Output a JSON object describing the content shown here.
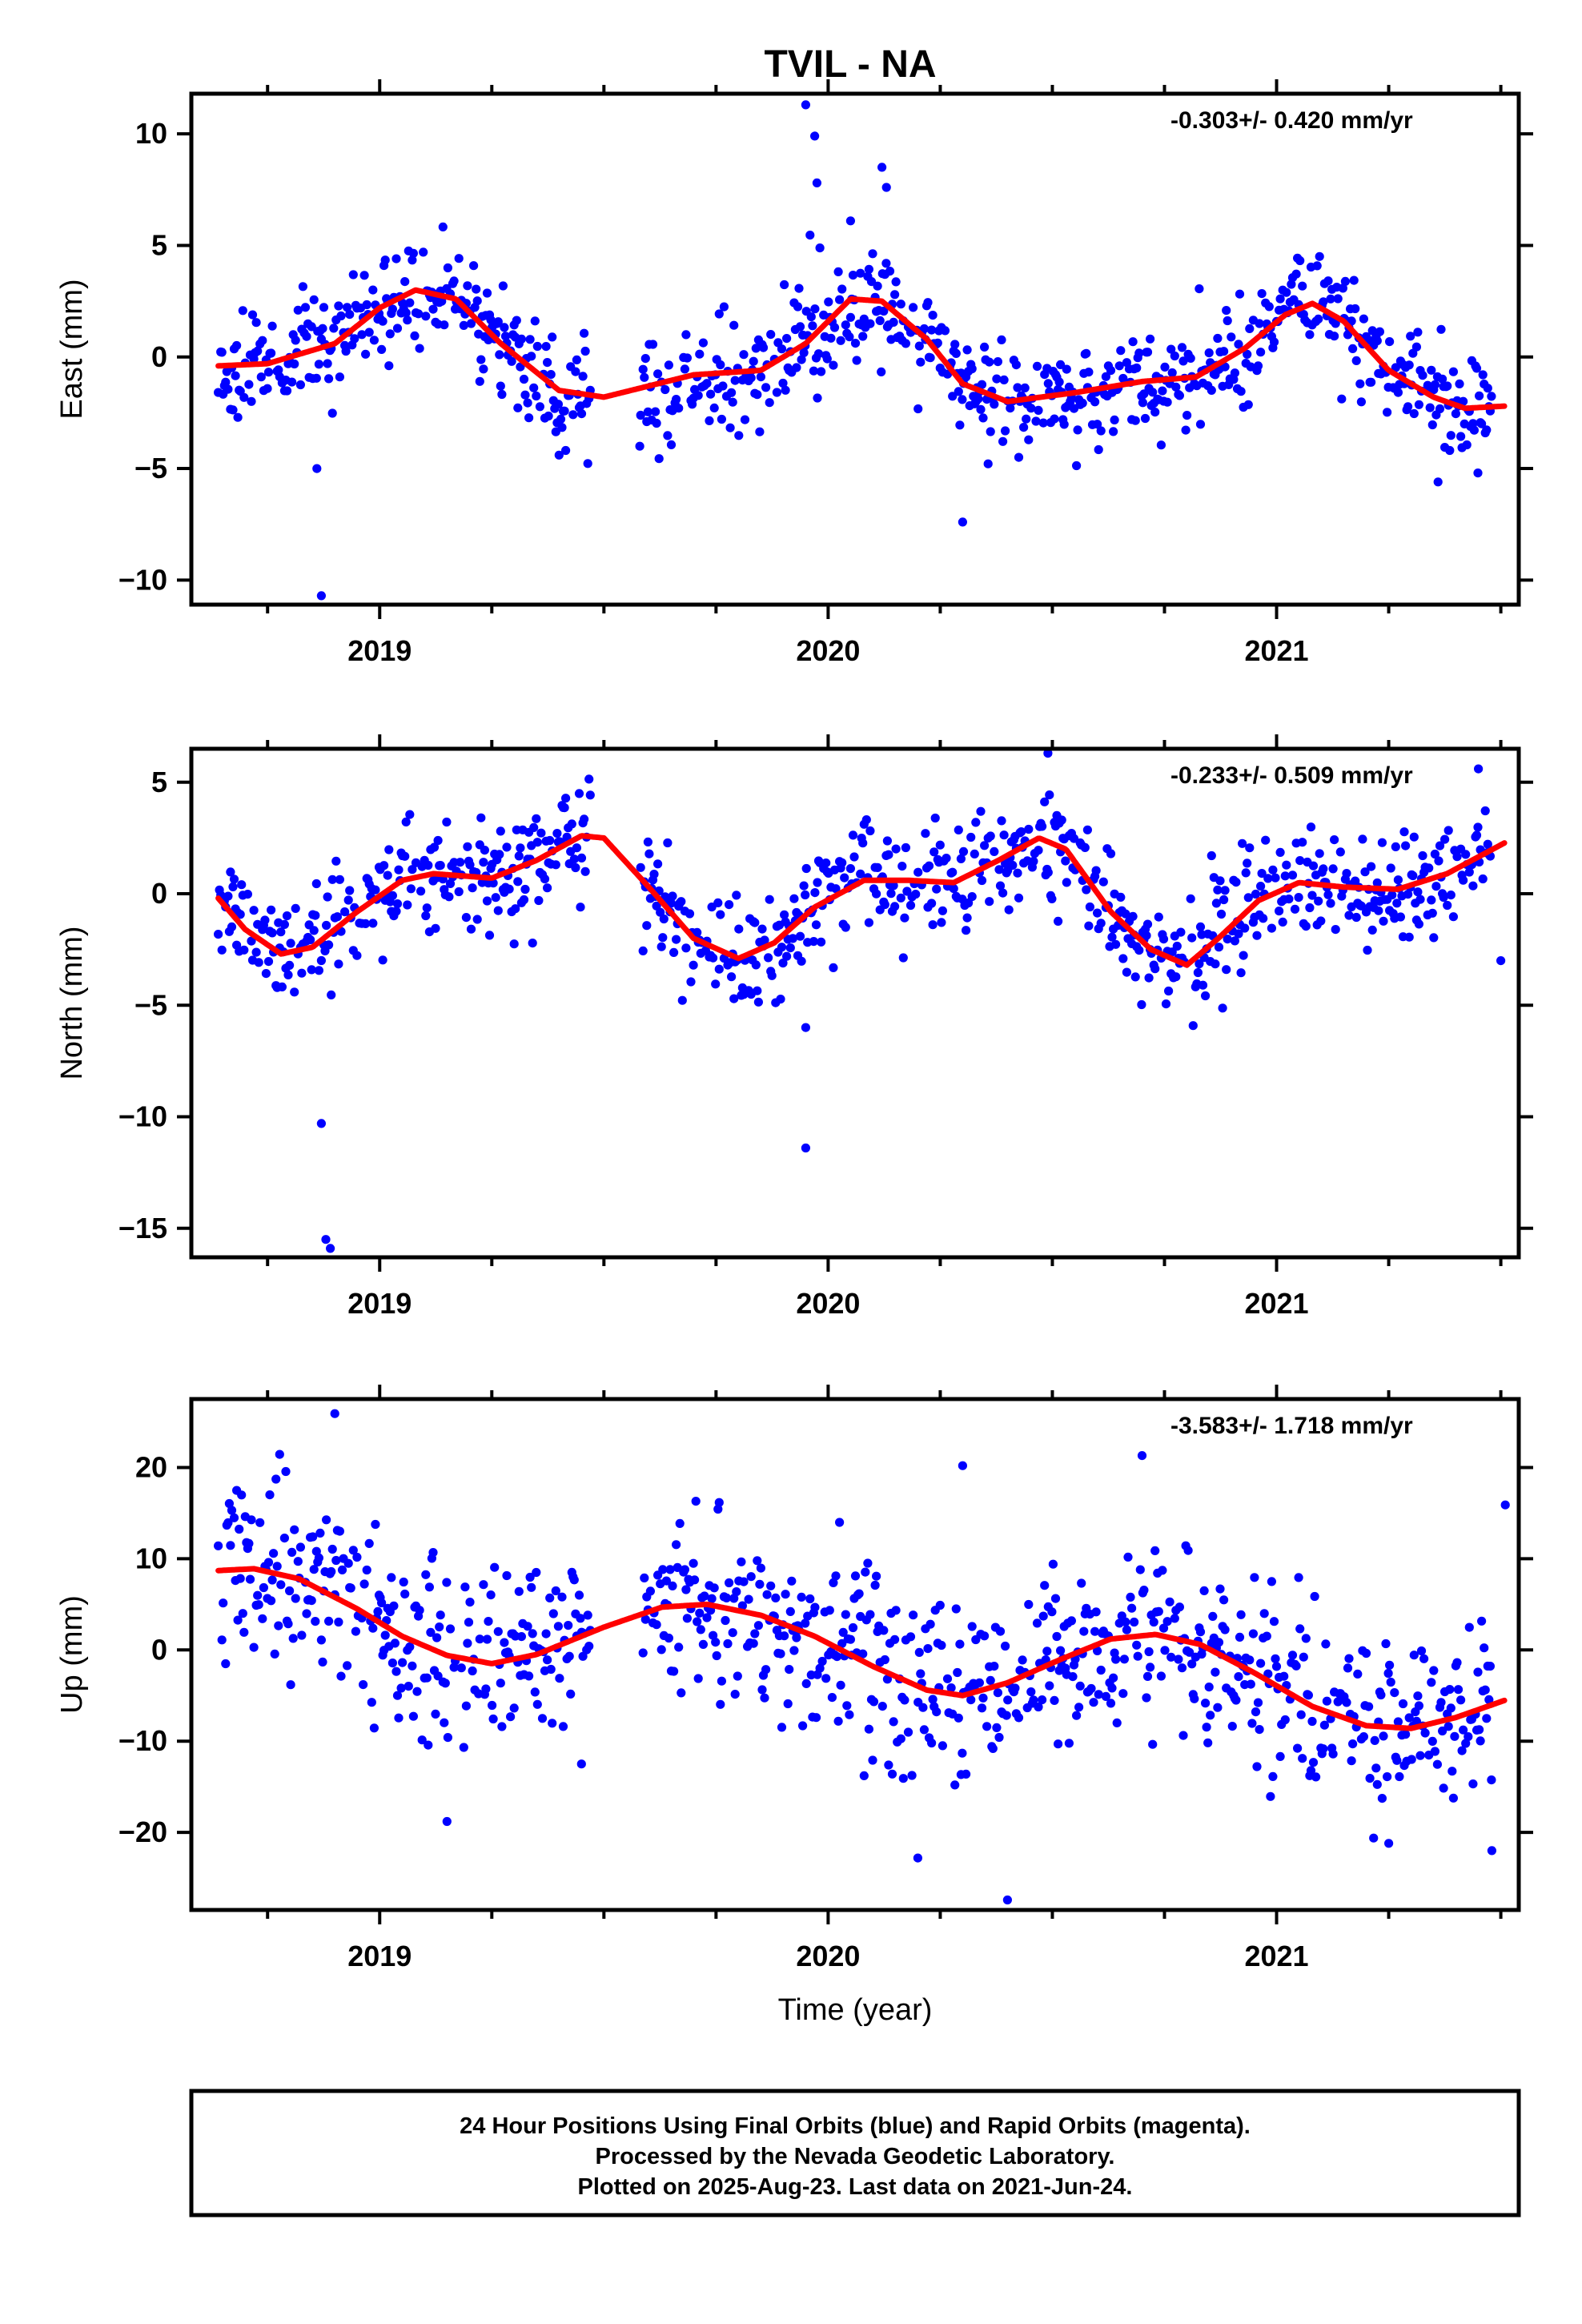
{
  "title": "TVIL - NA",
  "colors": {
    "final_orbits": "#0000ff",
    "fit": "#ff0000",
    "frame": "#000000"
  },
  "footer": {
    "line1": "24 Hour Positions Using Final Orbits (blue) and Rapid Orbits (magenta).",
    "line2": "Processed by the Nevada Geodetic Laboratory.",
    "line3": "Plotted on 2025-Aug-23. Last data on 2021-Jun-24."
  },
  "chart_data": [
    {
      "type": "scatter",
      "ylabel": "East (mm)",
      "xlabel": "",
      "rate": "-0.303+/- 0.420 mm/yr",
      "xlim": [
        2018.58,
        2021.54
      ],
      "ylim": [
        -11.1,
        11.8
      ],
      "yticks": [
        10,
        5,
        0,
        -5,
        -10
      ],
      "xticks": [
        2019,
        2020,
        2021
      ],
      "seed": 11,
      "noise": 1.25,
      "fit_curve": [
        [
          2018.64,
          -0.4
        ],
        [
          2018.75,
          -0.3
        ],
        [
          2018.9,
          0.6
        ],
        [
          2019.0,
          2.2
        ],
        [
          2019.08,
          3.0
        ],
        [
          2019.17,
          2.6
        ],
        [
          2019.27,
          0.6
        ],
        [
          2019.4,
          -1.5
        ],
        [
          2019.5,
          -1.8
        ],
        [
          2019.7,
          -0.8
        ],
        [
          2019.85,
          -0.6
        ],
        [
          2019.95,
          0.6
        ],
        [
          2020.05,
          2.6
        ],
        [
          2020.12,
          2.5
        ],
        [
          2020.22,
          0.8
        ],
        [
          2020.3,
          -1.2
        ],
        [
          2020.4,
          -2.0
        ],
        [
          2020.55,
          -1.6
        ],
        [
          2020.7,
          -1.1
        ],
        [
          2020.82,
          -0.9
        ],
        [
          2020.93,
          0.4
        ],
        [
          2021.02,
          1.9
        ],
        [
          2021.08,
          2.4
        ],
        [
          2021.15,
          1.6
        ],
        [
          2021.25,
          -0.6
        ],
        [
          2021.35,
          -1.8
        ],
        [
          2021.42,
          -2.3
        ],
        [
          2021.51,
          -2.2
        ]
      ],
      "outliers": [
        [
          2018.86,
          -5.0
        ],
        [
          2018.87,
          -10.7
        ],
        [
          2019.95,
          11.3
        ],
        [
          2019.97,
          9.9
        ],
        [
          2019.975,
          7.8
        ],
        [
          2020.05,
          6.1
        ],
        [
          2020.12,
          8.5
        ],
        [
          2020.13,
          7.6
        ],
        [
          2020.3,
          -7.4
        ],
        [
          2019.4,
          -4.4
        ],
        [
          2019.58,
          -4.0
        ],
        [
          2021.36,
          -5.6
        ]
      ],
      "gaps": [
        [
          2019.47,
          2019.58
        ]
      ]
    },
    {
      "type": "scatter",
      "ylabel": "North (mm)",
      "xlabel": "",
      "rate": "-0.233+/- 0.509 mm/yr",
      "xlim": [
        2018.58,
        2021.54
      ],
      "ylim": [
        -16.3,
        6.5
      ],
      "yticks": [
        5,
        0,
        -5,
        -10,
        -15
      ],
      "xticks": [
        2019,
        2020,
        2021
      ],
      "seed": 23,
      "noise": 1.25,
      "fit_curve": [
        [
          2018.64,
          -0.2
        ],
        [
          2018.7,
          -1.6
        ],
        [
          2018.78,
          -2.7
        ],
        [
          2018.85,
          -2.4
        ],
        [
          2018.95,
          -0.8
        ],
        [
          2019.05,
          0.6
        ],
        [
          2019.12,
          0.9
        ],
        [
          2019.25,
          0.7
        ],
        [
          2019.35,
          1.5
        ],
        [
          2019.45,
          2.6
        ],
        [
          2019.5,
          2.5
        ],
        [
          2019.6,
          0.3
        ],
        [
          2019.7,
          -2.0
        ],
        [
          2019.8,
          -2.9
        ],
        [
          2019.88,
          -2.2
        ],
        [
          2019.97,
          -0.6
        ],
        [
          2020.08,
          0.6
        ],
        [
          2020.18,
          0.6
        ],
        [
          2020.28,
          0.5
        ],
        [
          2020.38,
          1.5
        ],
        [
          2020.47,
          2.5
        ],
        [
          2020.53,
          2.0
        ],
        [
          2020.63,
          -0.8
        ],
        [
          2020.72,
          -2.5
        ],
        [
          2020.8,
          -3.2
        ],
        [
          2020.87,
          -2.0
        ],
        [
          2020.96,
          -0.3
        ],
        [
          2021.05,
          0.5
        ],
        [
          2021.15,
          0.3
        ],
        [
          2021.27,
          0.2
        ],
        [
          2021.38,
          0.9
        ],
        [
          2021.51,
          2.3
        ]
      ],
      "outliers": [
        [
          2018.87,
          -10.3
        ],
        [
          2018.88,
          -15.5
        ],
        [
          2018.89,
          -15.9
        ],
        [
          2019.95,
          -11.4
        ],
        [
          2019.95,
          -6.0
        ],
        [
          2020.49,
          6.3
        ],
        [
          2021.45,
          5.6
        ],
        [
          2021.5,
          -3.0
        ]
      ],
      "gaps": [
        [
          2019.47,
          2019.58
        ]
      ]
    },
    {
      "type": "scatter",
      "ylabel": "Up (mm)",
      "xlabel": "Time (year)",
      "rate": "-3.583+/- 1.718 mm/yr",
      "xlim": [
        2018.58,
        2021.54
      ],
      "ylim": [
        -28.5,
        27.5
      ],
      "yticks": [
        20,
        10,
        0,
        -10,
        -20
      ],
      "xticks": [
        2019,
        2020,
        2021
      ],
      "seed": 37,
      "noise": 5.0,
      "fit_curve": [
        [
          2018.64,
          8.7
        ],
        [
          2018.72,
          8.9
        ],
        [
          2018.82,
          7.8
        ],
        [
          2018.95,
          4.5
        ],
        [
          2019.05,
          1.5
        ],
        [
          2019.15,
          -0.6
        ],
        [
          2019.25,
          -1.5
        ],
        [
          2019.35,
          -0.5
        ],
        [
          2019.5,
          2.5
        ],
        [
          2019.63,
          4.7
        ],
        [
          2019.73,
          5.0
        ],
        [
          2019.85,
          3.8
        ],
        [
          2019.97,
          1.5
        ],
        [
          2020.1,
          -1.8
        ],
        [
          2020.22,
          -4.4
        ],
        [
          2020.3,
          -5.0
        ],
        [
          2020.4,
          -3.6
        ],
        [
          2020.52,
          -1.0
        ],
        [
          2020.63,
          1.2
        ],
        [
          2020.73,
          1.7
        ],
        [
          2020.83,
          0.6
        ],
        [
          2020.95,
          -2.5
        ],
        [
          2021.08,
          -6.2
        ],
        [
          2021.2,
          -8.3
        ],
        [
          2021.3,
          -8.6
        ],
        [
          2021.4,
          -7.4
        ],
        [
          2021.51,
          -5.5
        ]
      ],
      "outliers": [
        [
          2018.9,
          25.9
        ],
        [
          2019.15,
          -18.8
        ],
        [
          2019.45,
          -12.5
        ],
        [
          2020.2,
          -22.8
        ],
        [
          2020.3,
          20.2
        ],
        [
          2020.4,
          -27.4
        ],
        [
          2020.7,
          21.3
        ],
        [
          2021.48,
          -22.0
        ],
        [
          2021.51,
          15.9
        ],
        [
          2021.25,
          -21.2
        ]
      ],
      "gaps": [
        [
          2019.47,
          2019.58
        ]
      ]
    }
  ]
}
